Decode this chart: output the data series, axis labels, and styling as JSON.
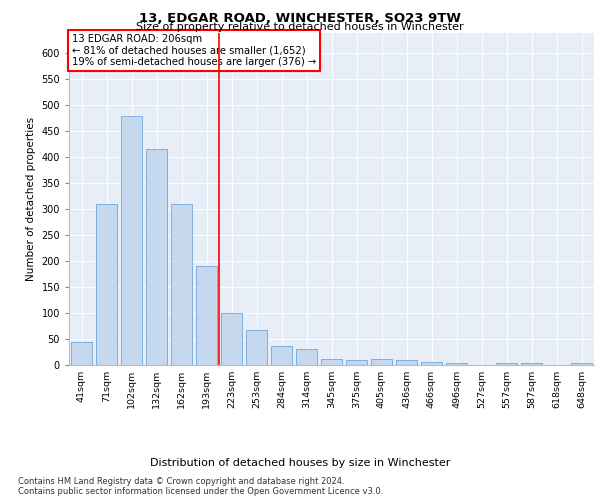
{
  "title1": "13, EDGAR ROAD, WINCHESTER, SO23 9TW",
  "title2": "Size of property relative to detached houses in Winchester",
  "xlabel": "Distribution of detached houses by size in Winchester",
  "ylabel": "Number of detached properties",
  "categories": [
    "41sqm",
    "71sqm",
    "102sqm",
    "132sqm",
    "162sqm",
    "193sqm",
    "223sqm",
    "253sqm",
    "284sqm",
    "314sqm",
    "345sqm",
    "375sqm",
    "405sqm",
    "436sqm",
    "466sqm",
    "496sqm",
    "527sqm",
    "557sqm",
    "587sqm",
    "618sqm",
    "648sqm"
  ],
  "values": [
    45,
    310,
    480,
    415,
    310,
    190,
    100,
    68,
    37,
    30,
    12,
    10,
    12,
    10,
    5,
    3,
    0,
    3,
    3,
    0,
    3
  ],
  "bar_color": "#c5d8ed",
  "bar_edge_color": "#5b9bd5",
  "vline_x": 5.5,
  "vline_color": "red",
  "annotation_text": "13 EDGAR ROAD: 206sqm\n← 81% of detached houses are smaller (1,652)\n19% of semi-detached houses are larger (376) →",
  "annotation_box_color": "white",
  "annotation_box_edge": "red",
  "footer1": "Contains HM Land Registry data © Crown copyright and database right 2024.",
  "footer2": "Contains public sector information licensed under the Open Government Licence v3.0.",
  "plot_bg_color": "#e8eef8",
  "ylim": [
    0,
    640
  ],
  "yticks": [
    0,
    50,
    100,
    150,
    200,
    250,
    300,
    350,
    400,
    450,
    500,
    550,
    600
  ]
}
